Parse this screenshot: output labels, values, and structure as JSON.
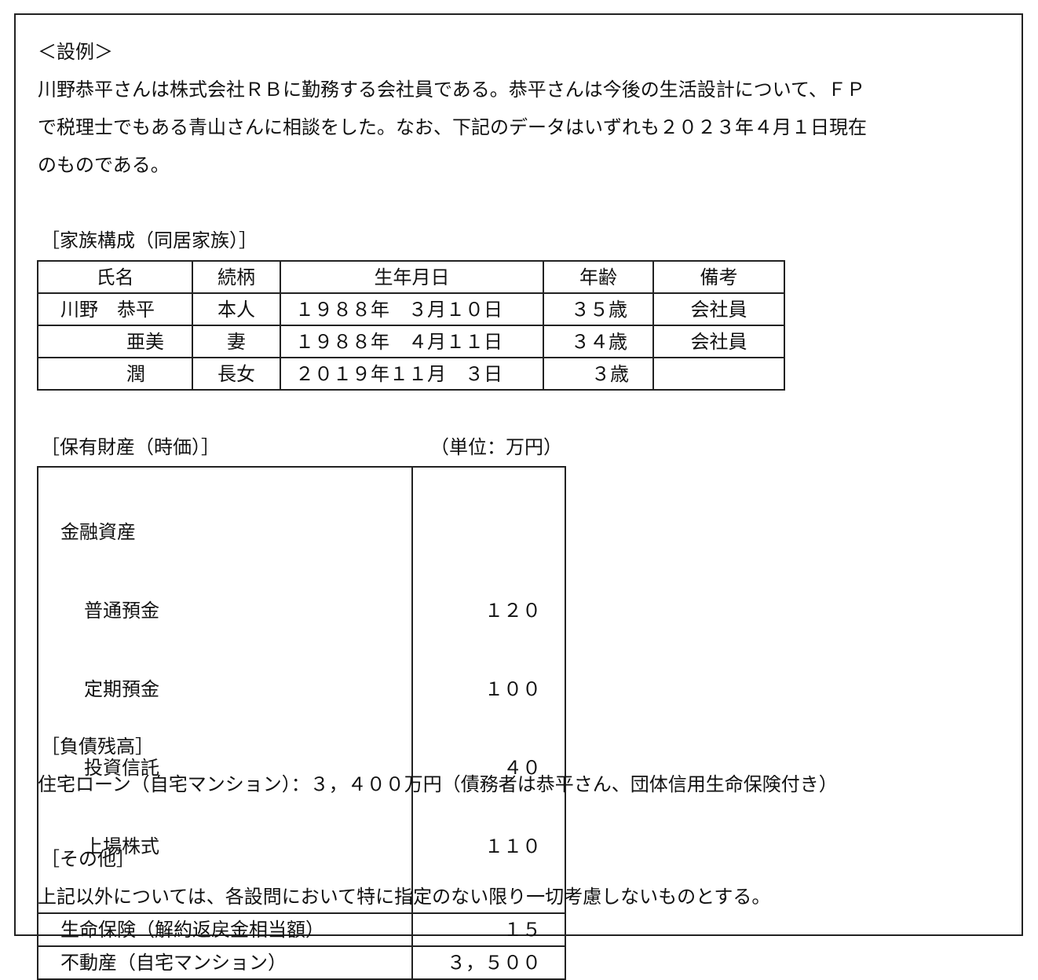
{
  "heading": "＜設例＞",
  "intro": [
    "川野恭平さんは株式会社ＲＢに勤務する会社員である。恭平さんは今後の生活設計について、ＦＰ",
    "で税理士でもある青山さんに相談をした。なお、下記のデータはいずれも２０２３年４月１日現在",
    "のものである。"
  ],
  "family": {
    "title": "［家族構成（同居家族）］",
    "headers": [
      "氏名",
      "続柄",
      "生年月日",
      "年齢",
      "備考"
    ],
    "rows": [
      [
        "川野　恭平",
        "本人",
        "１９８８年　３月１０日",
        "３５歳",
        "会社員"
      ],
      [
        "亜美",
        "妻",
        "１９８８年　４月１１日",
        "３４歳",
        "会社員"
      ],
      [
        "潤",
        "長女",
        "２０１９年１１月　３日",
        "３歳",
        ""
      ]
    ]
  },
  "assets": {
    "title": "［保有財産（時価）］",
    "unit": "（単位：万円）",
    "financial_label": "金融資産",
    "financial": [
      [
        "普通預金",
        "１２０"
      ],
      [
        "定期預金",
        "１００"
      ],
      [
        "投資信託",
        "４０"
      ],
      [
        "上場株式",
        "１１０"
      ]
    ],
    "others": [
      [
        "生命保険（解約返戻金相当額）",
        "１５"
      ],
      [
        "不動産（自宅マンション）",
        "３，５００"
      ]
    ]
  },
  "debt": {
    "title": "［負債残高］",
    "text": "住宅ローン（自宅マンション）：３，４００万円（債務者は恭平さん、団体信用生命保険付き）"
  },
  "other": {
    "title": "［その他］",
    "text": "上記以外については、各設問において特に指定のない限り一切考慮しないものとする。"
  }
}
